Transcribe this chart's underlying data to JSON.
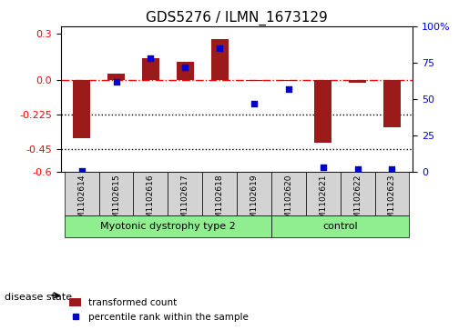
{
  "title": "GDS5276 / ILMN_1673129",
  "samples": [
    "GSM1102614",
    "GSM1102615",
    "GSM1102616",
    "GSM1102617",
    "GSM1102618",
    "GSM1102619",
    "GSM1102620",
    "GSM1102621",
    "GSM1102622",
    "GSM1102623"
  ],
  "bar_values": [
    -0.38,
    0.04,
    0.14,
    0.12,
    0.265,
    -0.005,
    -0.005,
    -0.41,
    -0.02,
    -0.305
  ],
  "dot_values": [
    0.5,
    62,
    78,
    72,
    85,
    47,
    57,
    3,
    2,
    2
  ],
  "dot_values_normalized": [
    0.5,
    62,
    78,
    72,
    85,
    47,
    57,
    3,
    2,
    2
  ],
  "ylim_left": [
    -0.6,
    0.35
  ],
  "ylim_right": [
    0,
    100
  ],
  "yticks_left": [
    -0.6,
    -0.45,
    -0.225,
    0.0,
    0.3
  ],
  "yticks_right": [
    0,
    25,
    50,
    75,
    100
  ],
  "hline_y": 0.0,
  "dotted_lines": [
    -0.225,
    -0.45
  ],
  "bar_color": "#9B1B1B",
  "dot_color": "#0000CD",
  "group1_label": "Myotonic dystrophy type 2",
  "group2_label": "control",
  "group1_count": 6,
  "group2_count": 4,
  "disease_state_label": "disease state",
  "legend_bar_label": "transformed count",
  "legend_dot_label": "percentile rank within the sample",
  "group_color": "#90EE90",
  "sample_bg_color": "#D3D3D3"
}
